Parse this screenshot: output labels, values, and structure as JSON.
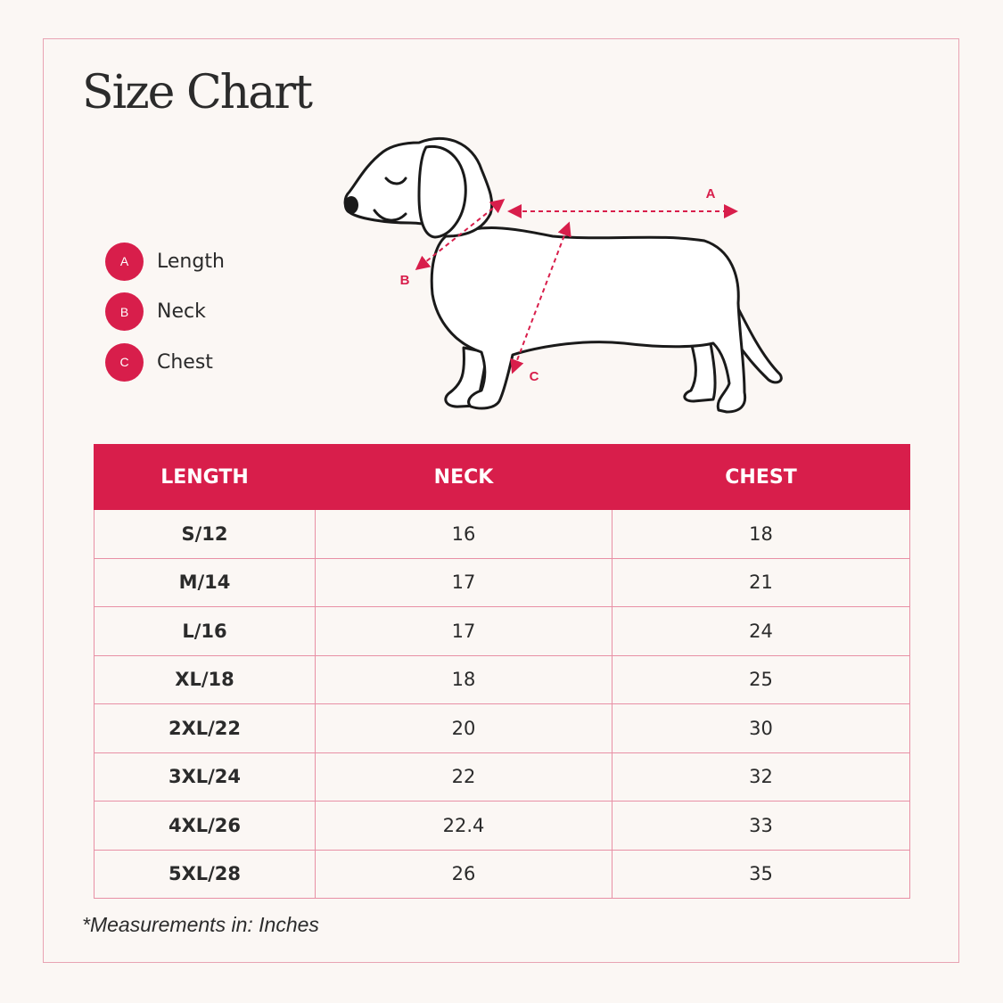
{
  "title": "Size Chart",
  "accent_color": "#d81e4b",
  "legend": [
    {
      "letter": "A",
      "label": "Length"
    },
    {
      "letter": "B",
      "label": "Neck"
    },
    {
      "letter": "C",
      "label": "Chest"
    }
  ],
  "diagram_labels": {
    "a": "A",
    "b": "B",
    "c": "C"
  },
  "table": {
    "headers": [
      "LENGTH",
      "NECK",
      "CHEST"
    ],
    "rows": [
      [
        "S/12",
        "16",
        "18"
      ],
      [
        "M/14",
        "17",
        "21"
      ],
      [
        "L/16",
        "17",
        "24"
      ],
      [
        "XL/18",
        "18",
        "25"
      ],
      [
        "2XL/22",
        "20",
        "30"
      ],
      [
        "3XL/24",
        "22",
        "32"
      ],
      [
        "4XL/26",
        "22.4",
        "33"
      ],
      [
        "5XL/28",
        "26",
        "35"
      ]
    ]
  },
  "note": "*Measurements in: Inches"
}
